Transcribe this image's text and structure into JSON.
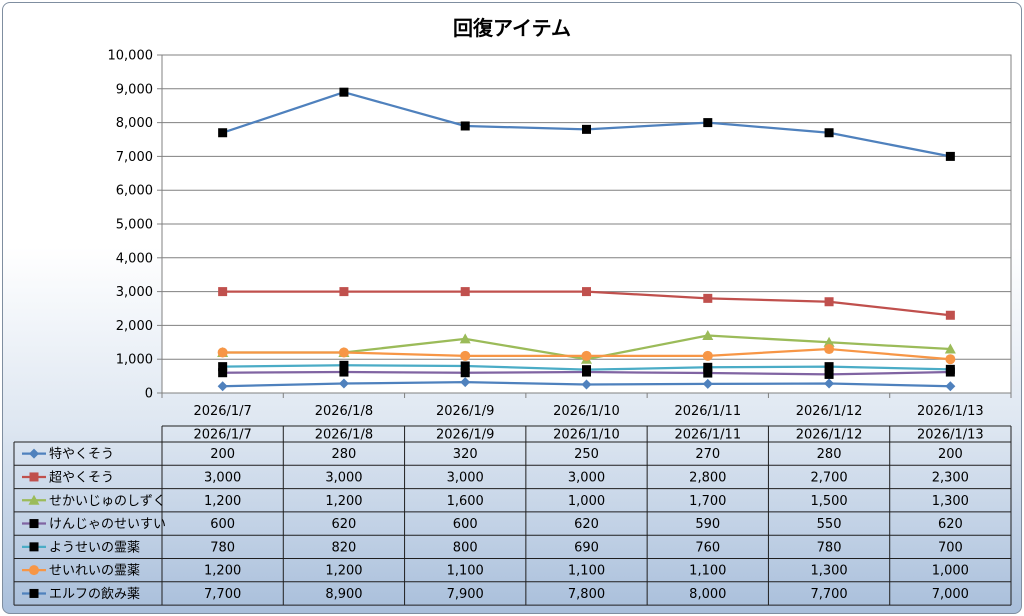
{
  "chart_data": {
    "type": "line",
    "title": "回復アイテム",
    "xlabel": "",
    "ylabel": "",
    "ylim": [
      0,
      10000
    ],
    "yticks": [
      "0",
      "1,000",
      "2,000",
      "3,000",
      "4,000",
      "5,000",
      "6,000",
      "7,000",
      "8,000",
      "9,000",
      "10,000"
    ],
    "categories": [
      "2026/1/7",
      "2026/1/8",
      "2026/1/9",
      "2026/1/10",
      "2026/1/11",
      "2026/1/12",
      "2026/1/13"
    ],
    "grid": true,
    "legend": "data-table-below",
    "series": [
      {
        "name": "特やくそう",
        "color": "#4f81bd",
        "marker": "diamond",
        "values": [
          200,
          280,
          320,
          250,
          270,
          280,
          200
        ],
        "labels": [
          "200",
          "280",
          "320",
          "250",
          "270",
          "280",
          "200"
        ]
      },
      {
        "name": "超やくそう",
        "color": "#c0504d",
        "marker": "square",
        "values": [
          3000,
          3000,
          3000,
          3000,
          2800,
          2700,
          2300
        ],
        "labels": [
          "3,000",
          "3,000",
          "3,000",
          "3,000",
          "2,800",
          "2,700",
          "2,300"
        ]
      },
      {
        "name": "せかいじゅのしずく",
        "color": "#9bbb59",
        "marker": "triangle",
        "values": [
          1200,
          1200,
          1600,
          1000,
          1700,
          1500,
          1300
        ],
        "labels": [
          "1,200",
          "1,200",
          "1,600",
          "1,000",
          "1,700",
          "1,500",
          "1,300"
        ]
      },
      {
        "name": "けんじゃのせいすい",
        "color": "#8064a2",
        "marker": "black-square",
        "values": [
          600,
          620,
          600,
          620,
          590,
          550,
          620
        ],
        "labels": [
          "600",
          "620",
          "600",
          "620",
          "590",
          "550",
          "620"
        ]
      },
      {
        "name": "ようせいの霊薬",
        "color": "#4bacc6",
        "marker": "black-square",
        "values": [
          780,
          820,
          800,
          690,
          760,
          780,
          700
        ],
        "labels": [
          "780",
          "820",
          "800",
          "690",
          "760",
          "780",
          "700"
        ]
      },
      {
        "name": "せいれいの霊薬",
        "color": "#f79646",
        "marker": "circle",
        "values": [
          1200,
          1200,
          1100,
          1100,
          1100,
          1300,
          1000
        ],
        "labels": [
          "1,200",
          "1,200",
          "1,100",
          "1,100",
          "1,100",
          "1,300",
          "1,000"
        ]
      },
      {
        "name": "エルフの飲み薬",
        "color": "#4f81bd",
        "marker": "black-square",
        "values": [
          7700,
          8900,
          7900,
          7800,
          8000,
          7700,
          7000
        ],
        "labels": [
          "7,700",
          "8,900",
          "7,900",
          "7,800",
          "8,000",
          "7,700",
          "7,000"
        ]
      }
    ]
  }
}
